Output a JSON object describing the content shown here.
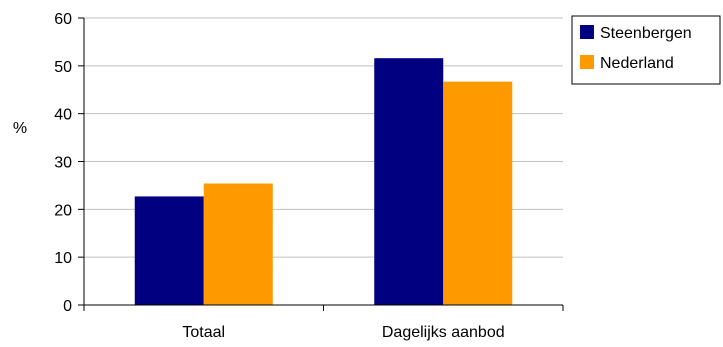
{
  "chart_data": {
    "type": "bar",
    "title": "",
    "xlabel": "",
    "ylabel": "%",
    "ylim": [
      0,
      60
    ],
    "yticks": [
      0,
      10,
      20,
      30,
      40,
      50,
      60
    ],
    "categories": [
      "Totaal",
      "Dagelijks aanbod"
    ],
    "series": [
      {
        "name": "Steenbergen",
        "color": "#000080",
        "values": [
          22.7,
          51.6
        ]
      },
      {
        "name": "Nederland",
        "color": "#FF9900",
        "values": [
          25.4,
          46.7
        ]
      }
    ],
    "grid": true,
    "legend_position": "top-right"
  }
}
